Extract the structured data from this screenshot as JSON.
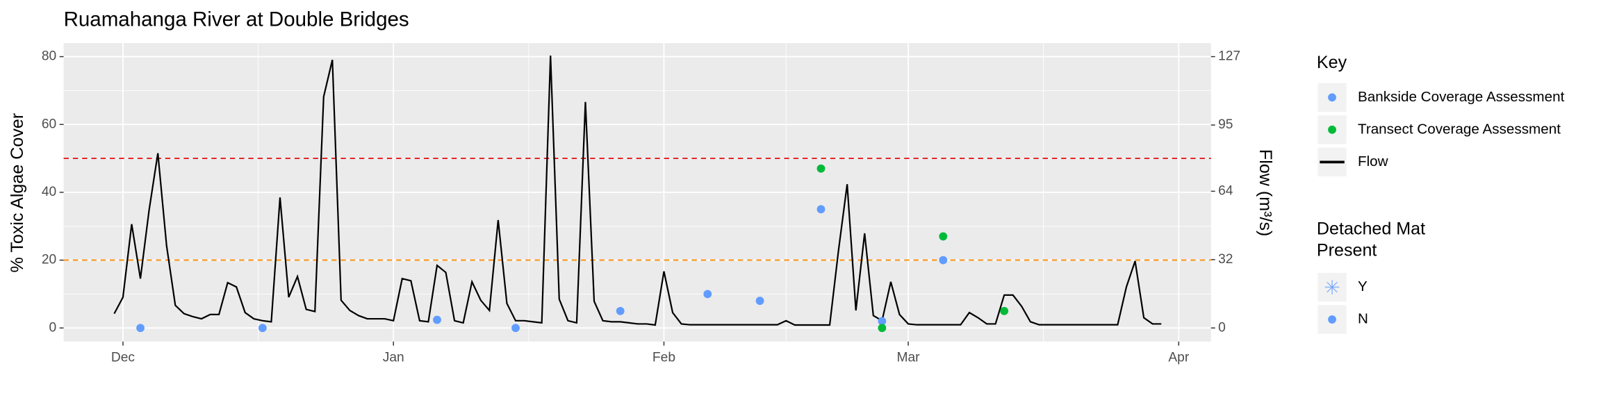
{
  "chart_data": {
    "type": "line",
    "title": "Ruamahanga River at Double Bridges",
    "ylabel": "% Toxic Algae Cover",
    "y2label": "Flow (m³/s)",
    "xlim": [
      -6.8,
      124.7
    ],
    "xticks": [
      {
        "value": 0,
        "label": "Dec"
      },
      {
        "value": 31,
        "label": "Jan"
      },
      {
        "value": 62,
        "label": "Feb"
      },
      {
        "value": 90,
        "label": "Mar"
      },
      {
        "value": 121,
        "label": "Apr"
      }
    ],
    "ylim": [
      -4,
      84
    ],
    "yticks": [
      0,
      20,
      40,
      60,
      80
    ],
    "y2lim": [
      -6.35,
      133.35
    ],
    "y2ticks": [
      0,
      32,
      64,
      95,
      127
    ],
    "grid": true,
    "hlines": [
      {
        "value": 50,
        "color": "#e41a1c"
      },
      {
        "value": 20,
        "color": "#ff8c00"
      }
    ],
    "legend_title": "Key",
    "series": [
      {
        "name": "Bankside Coverage Assessment",
        "type": "scatter",
        "color": "#619CFF",
        "x": [
          2,
          16,
          36,
          45,
          57,
          67,
          73,
          80,
          87,
          94
        ],
        "values": [
          0,
          0,
          2.4,
          0,
          5,
          10,
          8,
          35,
          2,
          20
        ]
      },
      {
        "name": "Transect Coverage Assessment",
        "type": "scatter",
        "color": "#00BA38",
        "x": [
          80,
          87,
          94,
          101
        ],
        "values": [
          47,
          0,
          27,
          5
        ]
      },
      {
        "name": "Flow",
        "type": "line",
        "color": "#000000",
        "axis": "y2",
        "x": [
          -1,
          0,
          1,
          2,
          3,
          4,
          5,
          6,
          7,
          8,
          9,
          10,
          11,
          12,
          13,
          14,
          15,
          16,
          17,
          18,
          19,
          20,
          21,
          22,
          23,
          24,
          25,
          26,
          27,
          28,
          29,
          30,
          31,
          32,
          33,
          34,
          35,
          36,
          37,
          38,
          39,
          40,
          41,
          42,
          43,
          44,
          45,
          46,
          47,
          48,
          49,
          50,
          51,
          52,
          53,
          54,
          55,
          56,
          57,
          58,
          59,
          60,
          61,
          62,
          63,
          64,
          65,
          66,
          67,
          68,
          69,
          70,
          71,
          72,
          73,
          74,
          75,
          76,
          77,
          78,
          79,
          80,
          81,
          82,
          83,
          84,
          85,
          86,
          87,
          88,
          89,
          90,
          91,
          92,
          93,
          94,
          95,
          96,
          97,
          98,
          99,
          100,
          101,
          102,
          103,
          104,
          105,
          106,
          107,
          108,
          109,
          110,
          111,
          112,
          113,
          114,
          115,
          116,
          117,
          118,
          119
        ],
        "values": [
          6.7,
          14.4,
          48.6,
          23.1,
          55.3,
          81.8,
          38.5,
          10.6,
          6.7,
          5.3,
          4.3,
          6.3,
          6.3,
          21.2,
          19.2,
          7.2,
          4.3,
          3.4,
          2.9,
          61.1,
          14.4,
          24.1,
          8.7,
          7.7,
          108.2,
          125.5,
          13.0,
          8.2,
          5.8,
          4.3,
          4.3,
          4.3,
          3.4,
          23.1,
          22.1,
          3.4,
          2.9,
          29.3,
          26.0,
          3.4,
          2.4,
          21.6,
          13.0,
          8.2,
          50.5,
          11.5,
          3.4,
          3.4,
          2.9,
          2.4,
          127.5,
          13.5,
          3.4,
          2.4,
          105.8,
          12.5,
          3.4,
          2.9,
          2.9,
          2.4,
          1.9,
          1.9,
          1.4,
          26.5,
          7.2,
          1.9,
          1.5,
          1.5,
          1.5,
          1.5,
          1.5,
          1.5,
          1.5,
          1.5,
          1.5,
          1.5,
          1.5,
          3.4,
          1.4,
          1.4,
          1.4,
          1.4,
          1.4,
          36.1,
          67.3,
          8.2,
          44.3,
          5.8,
          3.4,
          21.6,
          6.3,
          1.9,
          1.5,
          1.5,
          1.5,
          1.5,
          1.5,
          1.5,
          7.2,
          4.8,
          1.9,
          1.9,
          15.4,
          15.4,
          10.1,
          2.9,
          1.5,
          1.5,
          1.5,
          1.5,
          1.5,
          1.5,
          1.5,
          1.5,
          1.5,
          1.5,
          19.2,
          31.3,
          4.8,
          1.9,
          1.9
        ]
      }
    ],
    "shape_legend": {
      "title": [
        "Detached Mat",
        "Present"
      ],
      "entries": [
        "Y",
        "N"
      ],
      "color": "#619CFF"
    }
  }
}
